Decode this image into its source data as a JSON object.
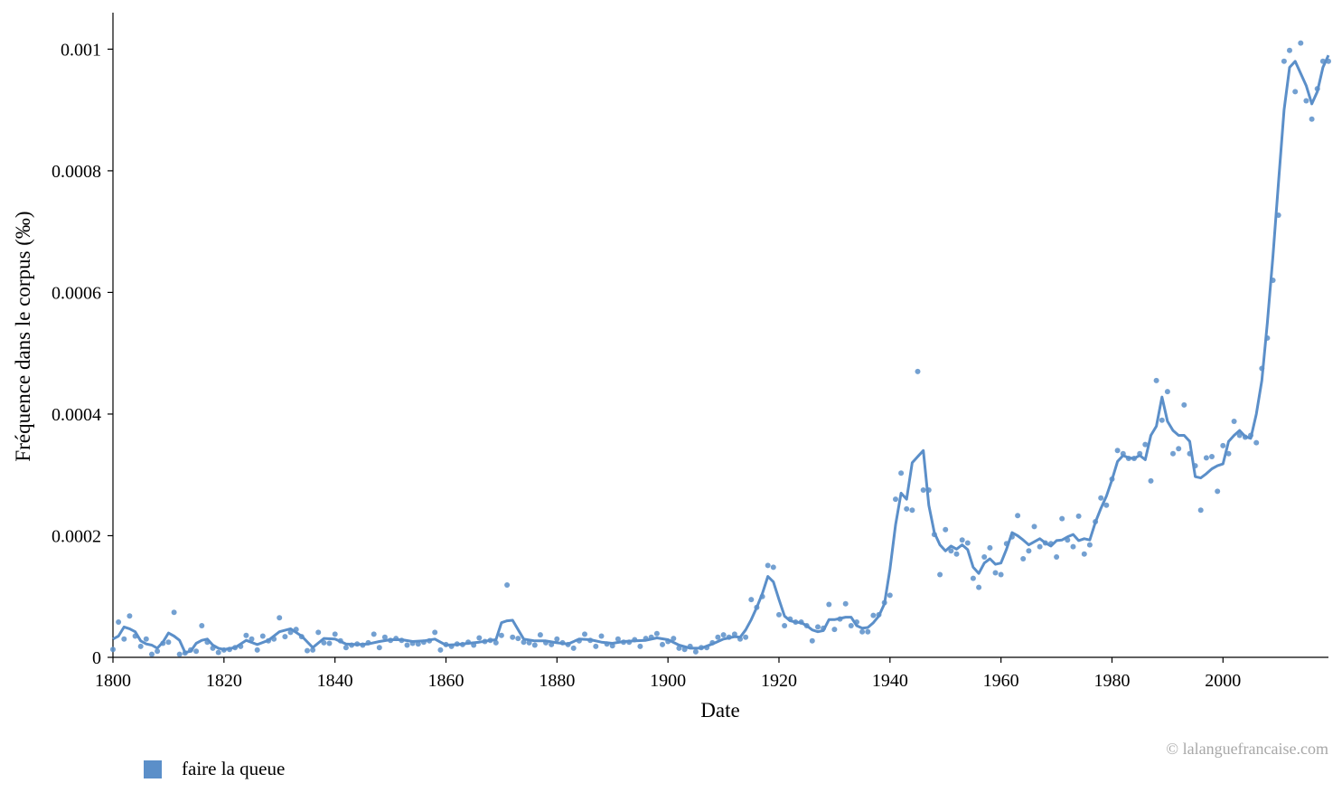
{
  "chart_data": {
    "type": "line",
    "xlabel": "Date",
    "ylabel": "Fréquence dans le corpus (‰)",
    "xlim": [
      1800,
      2019
    ],
    "ylim": [
      0,
      0.00106
    ],
    "x_ticks": [
      "1800",
      "1820",
      "1840",
      "1860",
      "1880",
      "1900",
      "1920",
      "1940",
      "1960",
      "1980",
      "2000"
    ],
    "y_ticks": [
      "0",
      "0.0002",
      "0.0004",
      "0.0006",
      "0.0008",
      "0.001"
    ],
    "grid": false,
    "legend_position": "bottom-left",
    "series": [
      {
        "name": "faire la queue",
        "color": "#5b8fc9",
        "smoothed": {
          "x": [
            1800,
            1801,
            1802,
            1803,
            1804,
            1805,
            1806,
            1807,
            1808,
            1809,
            1810,
            1811,
            1812,
            1813,
            1814,
            1815,
            1816,
            1817,
            1818,
            1819,
            1820,
            1822,
            1824,
            1826,
            1828,
            1830,
            1832,
            1834,
            1836,
            1838,
            1840,
            1842,
            1844,
            1846,
            1848,
            1850,
            1852,
            1854,
            1856,
            1858,
            1860,
            1862,
            1864,
            1866,
            1868,
            1869,
            1870,
            1871,
            1872,
            1874,
            1876,
            1878,
            1880,
            1882,
            1884,
            1886,
            1888,
            1890,
            1892,
            1894,
            1896,
            1898,
            1900,
            1902,
            1904,
            1906,
            1908,
            1910,
            1912,
            1913,
            1914,
            1915,
            1916,
            1917,
            1918,
            1919,
            1920,
            1921,
            1922,
            1923,
            1924,
            1925,
            1926,
            1927,
            1928,
            1929,
            1930,
            1931,
            1932,
            1933,
            1934,
            1935,
            1936,
            1937,
            1938,
            1939,
            1940,
            1941,
            1942,
            1943,
            1944,
            1945,
            1946,
            1947,
            1948,
            1949,
            1950,
            1951,
            1952,
            1953,
            1954,
            1955,
            1956,
            1957,
            1958,
            1959,
            1960,
            1961,
            1962,
            1963,
            1964,
            1965,
            1966,
            1967,
            1968,
            1969,
            1970,
            1971,
            1972,
            1973,
            1974,
            1975,
            1976,
            1977,
            1978,
            1979,
            1980,
            1981,
            1982,
            1983,
            1984,
            1985,
            1986,
            1987,
            1988,
            1989,
            1990,
            1991,
            1992,
            1993,
            1994,
            1995,
            1996,
            1997,
            1998,
            1999,
            2000,
            2001,
            2002,
            2003,
            2004,
            2005,
            2006,
            2007,
            2008,
            2009,
            2010,
            2011,
            2012,
            2013,
            2014,
            2015,
            2016,
            2017,
            2018,
            2019
          ],
          "y": [
            3e-05,
            3.5e-05,
            5e-05,
            4.7e-05,
            4.2e-05,
            2.7e-05,
            2.2e-05,
            2e-05,
            1.5e-05,
            2.5e-05,
            4e-05,
            3.5e-05,
            2.8e-05,
            8e-06,
            1e-05,
            2.3e-05,
            2.8e-05,
            3e-05,
            2e-05,
            1.5e-05,
            1.3e-05,
            1.6e-05,
            2.8e-05,
            2.1e-05,
            2.8e-05,
            4.2e-05,
            4.7e-05,
            3.5e-05,
            1.6e-05,
            3.1e-05,
            3e-05,
            2.2e-05,
            2.1e-05,
            2.2e-05,
            2.6e-05,
            2.9e-05,
            2.9e-05,
            2.6e-05,
            2.7e-05,
            3e-05,
            2e-05,
            2.1e-05,
            2.3e-05,
            2.5e-05,
            2.8e-05,
            2.9e-05,
            5.7e-05,
            6e-05,
            6.1e-05,
            3e-05,
            2.7e-05,
            2.7e-05,
            2.4e-05,
            2.2e-05,
            3e-05,
            2.9e-05,
            2.5e-05,
            2.3e-05,
            2.6e-05,
            2.7e-05,
            2.8e-05,
            3.2e-05,
            2.9e-05,
            2e-05,
            1.5e-05,
            1.5e-05,
            2.2e-05,
            3e-05,
            3.4e-05,
            3.3e-05,
            4.5e-05,
            6.2e-05,
            8.2e-05,
            0.000105,
            0.000133,
            0.000124,
            9.5e-05,
            6.8e-05,
            6e-05,
            5.8e-05,
            5.7e-05,
            5.2e-05,
            4.5e-05,
            4.2e-05,
            4.4e-05,
            6.2e-05,
            6.2e-05,
            6.4e-05,
            6.6e-05,
            6.6e-05,
            5.2e-05,
            4.8e-05,
            4.9e-05,
            5.7e-05,
            6.8e-05,
            8.8e-05,
            0.000145,
            0.000218,
            0.00027,
            0.00026,
            0.00032,
            0.00033,
            0.00034,
            0.00025,
            0.000205,
            0.000185,
            0.000175,
            0.000183,
            0.000178,
            0.000185,
            0.000177,
            0.000148,
            0.000138,
            0.000155,
            0.000162,
            0.000153,
            0.000155,
            0.000178,
            0.000205,
            0.0002,
            0.000193,
            0.000185,
            0.00019,
            0.000195,
            0.000188,
            0.000183,
            0.000192,
            0.000193,
            0.000198,
            0.000202,
            0.000192,
            0.000195,
            0.000193,
            0.000222,
            0.000245,
            0.000265,
            0.000292,
            0.000322,
            0.000332,
            0.000328,
            0.000327,
            0.000332,
            0.000325,
            0.000365,
            0.00038,
            0.000428,
            0.000388,
            0.000373,
            0.000365,
            0.000365,
            0.000355,
            0.000297,
            0.000295,
            0.000302,
            0.00031,
            0.000315,
            0.000318,
            0.000355,
            0.000365,
            0.000373,
            0.000363,
            0.00036,
            0.0004,
            0.000455,
            0.00055,
            0.00066,
            0.00078,
            0.0009,
            0.00097,
            0.00098,
            0.00096,
            0.00094,
            0.00091,
            0.00093,
            0.00097,
            0.00099
          ]
        },
        "points": {
          "x": [
            1800,
            1801,
            1802,
            1803,
            1804,
            1805,
            1806,
            1807,
            1808,
            1809,
            1810,
            1811,
            1812,
            1813,
            1814,
            1815,
            1816,
            1817,
            1818,
            1819,
            1820,
            1821,
            1822,
            1823,
            1824,
            1825,
            1826,
            1827,
            1828,
            1829,
            1830,
            1831,
            1832,
            1833,
            1834,
            1835,
            1836,
            1837,
            1838,
            1839,
            1840,
            1841,
            1842,
            1843,
            1844,
            1845,
            1846,
            1847,
            1848,
            1849,
            1850,
            1851,
            1852,
            1853,
            1854,
            1855,
            1856,
            1857,
            1858,
            1859,
            1860,
            1861,
            1862,
            1863,
            1864,
            1865,
            1866,
            1867,
            1868,
            1869,
            1870,
            1871,
            1872,
            1873,
            1874,
            1875,
            1876,
            1877,
            1878,
            1879,
            1880,
            1881,
            1882,
            1883,
            1884,
            1885,
            1886,
            1887,
            1888,
            1889,
            1890,
            1891,
            1892,
            1893,
            1894,
            1895,
            1896,
            1897,
            1898,
            1899,
            1900,
            1901,
            1902,
            1903,
            1904,
            1905,
            1906,
            1907,
            1908,
            1909,
            1910,
            1911,
            1912,
            1913,
            1914,
            1915,
            1916,
            1917,
            1918,
            1919,
            1920,
            1921,
            1922,
            1923,
            1924,
            1925,
            1926,
            1927,
            1928,
            1929,
            1930,
            1931,
            1932,
            1933,
            1934,
            1935,
            1936,
            1937,
            1938,
            1939,
            1940,
            1941,
            1942,
            1943,
            1944,
            1945,
            1946,
            1947,
            1948,
            1949,
            1950,
            1951,
            1952,
            1953,
            1954,
            1955,
            1956,
            1957,
            1958,
            1959,
            1960,
            1961,
            1962,
            1963,
            1964,
            1965,
            1966,
            1967,
            1968,
            1969,
            1970,
            1971,
            1972,
            1973,
            1974,
            1975,
            1976,
            1977,
            1978,
            1979,
            1980,
            1981,
            1982,
            1983,
            1984,
            1985,
            1986,
            1987,
            1988,
            1989,
            1990,
            1991,
            1992,
            1993,
            1994,
            1995,
            1996,
            1997,
            1998,
            1999,
            2000,
            2001,
            2002,
            2003,
            2004,
            2005,
            2006,
            2007,
            2008,
            2009,
            2010,
            2011,
            2012,
            2013,
            2014,
            2015,
            2016,
            2017,
            2018,
            2019
          ],
          "y": [
            1.3e-05,
            5.8e-05,
            3e-05,
            6.8e-05,
            3.5e-05,
            1.8e-05,
            3e-05,
            5e-06,
            1e-05,
            2.3e-05,
            2.5e-05,
            7.4e-05,
            5e-06,
            7e-06,
            1.2e-05,
            1e-05,
            5.2e-05,
            2.5e-05,
            1.5e-05,
            8e-06,
            1.2e-05,
            1.3e-05,
            1.6e-05,
            1.8e-05,
            3.6e-05,
            3e-05,
            1.2e-05,
            3.5e-05,
            2.7e-05,
            3e-05,
            6.5e-05,
            3.4e-05,
            4.1e-05,
            4.6e-05,
            3.4e-05,
            1.1e-05,
            1.2e-05,
            4.1e-05,
            2.4e-05,
            2.3e-05,
            3.8e-05,
            2.7e-05,
            1.6e-05,
            2e-05,
            2.2e-05,
            2e-05,
            2.4e-05,
            3.8e-05,
            1.6e-05,
            3.3e-05,
            2.8e-05,
            3.1e-05,
            2.8e-05,
            2e-05,
            2.3e-05,
            2.2e-05,
            2.5e-05,
            2.7e-05,
            4.1e-05,
            1.2e-05,
            2.1e-05,
            1.8e-05,
            2.2e-05,
            2.1e-05,
            2.5e-05,
            2e-05,
            3.2e-05,
            2.6e-05,
            2.8e-05,
            2.4e-05,
            3.6e-05,
            0.000119,
            3.3e-05,
            3.1e-05,
            2.5e-05,
            2.4e-05,
            2e-05,
            3.7e-05,
            2.4e-05,
            2.1e-05,
            3e-05,
            2.4e-05,
            2.1e-05,
            1.5e-05,
            2.7e-05,
            3.8e-05,
            2.8e-05,
            1.8e-05,
            3.5e-05,
            2.2e-05,
            1.9e-05,
            3e-05,
            2.5e-05,
            2.5e-05,
            2.9e-05,
            1.8e-05,
            3.1e-05,
            3.3e-05,
            3.9e-05,
            2.1e-05,
            2.6e-05,
            3.1e-05,
            1.5e-05,
            1.3e-05,
            1.8e-05,
            9e-06,
            1.6e-05,
            1.6e-05,
            2.4e-05,
            3.3e-05,
            3.7e-05,
            3.3e-05,
            3.8e-05,
            3e-05,
            3.3e-05,
            9.5e-05,
            8.2e-05,
            0.0001,
            0.000151,
            0.000148,
            7e-05,
            5.2e-05,
            6.3e-05,
            5.8e-05,
            5.8e-05,
            5.2e-05,
            2.7e-05,
            5e-05,
            4.8e-05,
            8.7e-05,
            4.6e-05,
            6.3e-05,
            8.8e-05,
            5.2e-05,
            5.8e-05,
            4.2e-05,
            4.2e-05,
            6.9e-05,
            7e-05,
            9e-05,
            0.000102,
            0.00026,
            0.000303,
            0.000244,
            0.000242,
            0.00047,
            0.000275,
            0.000275,
            0.000202,
            0.000136,
            0.00021,
            0.000175,
            0.00017,
            0.000193,
            0.000188,
            0.00013,
            0.000115,
            0.000165,
            0.00018,
            0.000139,
            0.000136,
            0.000187,
            0.000198,
            0.000233,
            0.000162,
            0.000175,
            0.000215,
            0.000182,
            0.000188,
            0.000187,
            0.000165,
            0.000228,
            0.000193,
            0.000182,
            0.000232,
            0.00017,
            0.000185,
            0.000223,
            0.000262,
            0.00025,
            0.000293,
            0.00034,
            0.000335,
            0.000327,
            0.000327,
            0.000335,
            0.00035,
            0.00029,
            0.000455,
            0.00039,
            0.000437,
            0.000335,
            0.000343,
            0.000415,
            0.000335,
            0.000315,
            0.000242,
            0.000328,
            0.00033,
            0.000273,
            0.000348,
            0.000335,
            0.000388,
            0.000365,
            0.000362,
            0.000365,
            0.000353,
            0.000475,
            0.000525,
            0.00062,
            0.000727,
            0.00098,
            0.000998,
            0.00093,
            0.00101,
            0.000915,
            0.000885,
            0.000935,
            0.00098,
            0.00098
          ]
        }
      }
    ]
  },
  "legend": {
    "label": "faire la queue"
  },
  "footer": {
    "copyright": "© lalanguefrancaise.com"
  }
}
